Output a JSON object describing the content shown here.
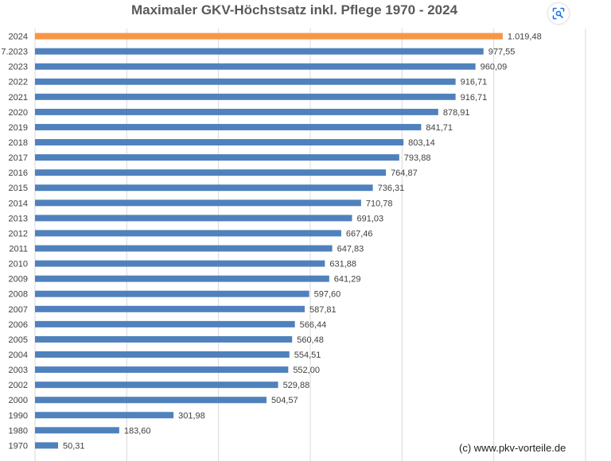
{
  "chart_data": {
    "type": "bar",
    "orientation": "horizontal",
    "title": "Maximaler GKV-Höchstsatz inkl. Pflege 1970 - 2024",
    "categories": [
      "2024",
      "7.2023",
      "2023",
      "2022",
      "2021",
      "2020",
      "2019",
      "2018",
      "2017",
      "2016",
      "2015",
      "2014",
      "2013",
      "2012",
      "2011",
      "2010",
      "2009",
      "2008",
      "2007",
      "2006",
      "2005",
      "2004",
      "2003",
      "2002",
      "2000",
      "1990",
      "1980",
      "1970"
    ],
    "values": [
      1019.48,
      977.55,
      960.09,
      916.71,
      916.71,
      878.91,
      841.71,
      803.14,
      793.88,
      764.87,
      736.31,
      710.78,
      691.03,
      667.46,
      647.83,
      631.88,
      641.29,
      597.6,
      587.81,
      566.44,
      560.48,
      554.51,
      552.0,
      529.88,
      504.57,
      301.98,
      183.6,
      50.31
    ],
    "value_labels": [
      "1.019,48",
      "977,55",
      "960,09",
      "916,71",
      "916,71",
      "878,91",
      "841,71",
      "803,14",
      "793,88",
      "764,87",
      "736,31",
      "710,78",
      "691,03",
      "667,46",
      "647,83",
      "631,88",
      "641,29",
      "597,60",
      "587,81",
      "566,44",
      "560,48",
      "554,51",
      "552,00",
      "529,88",
      "504,57",
      "301,98",
      "183,60",
      "50,31"
    ],
    "highlight_index": 0,
    "colors": {
      "bar": "#4f81bd",
      "highlight": "#f79646",
      "grid": "#d9d9d9",
      "label": "#404040"
    },
    "xlim": [
      0,
      1200
    ],
    "grid": true,
    "xlabel": "",
    "ylabel": ""
  },
  "footer": {
    "copyright": "(c) www.pkv-vorteile.de"
  },
  "toolbar": {
    "lens_icon": "visual-search-icon"
  }
}
